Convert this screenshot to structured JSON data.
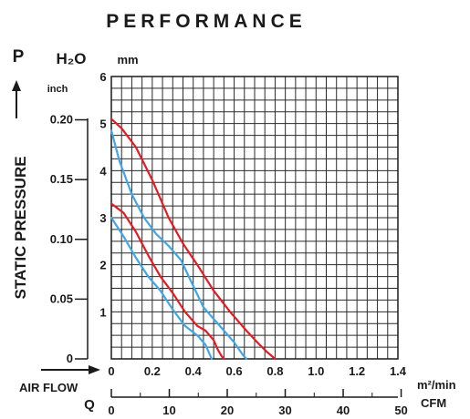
{
  "chart_data": {
    "type": "line",
    "title": "PERFORMANCE",
    "y_axis": {
      "symbol": "P",
      "name": "STATIC PRESSURE",
      "unit_left_label": "H₂O",
      "unit_left": "inch",
      "unit_right": "mm",
      "ticks_mm": [
        "6",
        "5",
        "4",
        "3",
        "2",
        "1"
      ],
      "ticks_inch": [
        "0.20",
        "0.15",
        "0.10",
        "0.05",
        "0"
      ],
      "ylim_mm": [
        0,
        6
      ]
    },
    "x_axis": {
      "name": "AIR FLOW",
      "symbol": "Q",
      "unit_top": "m²/min",
      "unit_bottom": "CFM",
      "ticks_m3min": [
        "0",
        "0.2",
        "0.4",
        "0.6",
        "0.8",
        "1.0",
        "1.2",
        "1.4"
      ],
      "ticks_cfm": [
        "0",
        "10",
        "20",
        "30",
        "40",
        "50"
      ],
      "xlim_m3min": [
        0,
        1.4
      ]
    },
    "grid": true,
    "series": [
      {
        "color": "#e41b23",
        "x": [
          0.0,
          0.05,
          0.12,
          0.2,
          0.28,
          0.35,
          0.42,
          0.5,
          0.58,
          0.66,
          0.72,
          0.76,
          0.8
        ],
        "y": [
          5.1,
          4.9,
          4.5,
          3.8,
          3.0,
          2.45,
          2.0,
          1.45,
          1.0,
          0.6,
          0.32,
          0.15,
          0.0
        ]
      },
      {
        "color": "#3fa7e8",
        "x": [
          0.0,
          0.04,
          0.1,
          0.16,
          0.22,
          0.28,
          0.34,
          0.4,
          0.45,
          0.5,
          0.55,
          0.6,
          0.64,
          0.66
        ],
        "y": [
          4.85,
          4.2,
          3.5,
          3.0,
          2.65,
          2.4,
          2.1,
          1.55,
          1.1,
          0.85,
          0.6,
          0.35,
          0.1,
          0.0
        ]
      },
      {
        "color": "#e41b23",
        "x": [
          0.0,
          0.06,
          0.12,
          0.18,
          0.24,
          0.3,
          0.36,
          0.42,
          0.46,
          0.5,
          0.52,
          0.54,
          0.55
        ],
        "y": [
          3.3,
          3.1,
          2.7,
          2.2,
          1.75,
          1.4,
          1.0,
          0.7,
          0.6,
          0.4,
          0.2,
          0.05,
          0.0
        ]
      },
      {
        "color": "#3fa7e8",
        "x": [
          0.0,
          0.06,
          0.12,
          0.18,
          0.24,
          0.3,
          0.36,
          0.42,
          0.46,
          0.48,
          0.49
        ],
        "y": [
          3.0,
          2.6,
          2.15,
          1.75,
          1.45,
          1.05,
          0.7,
          0.5,
          0.3,
          0.1,
          0.0
        ]
      }
    ]
  }
}
